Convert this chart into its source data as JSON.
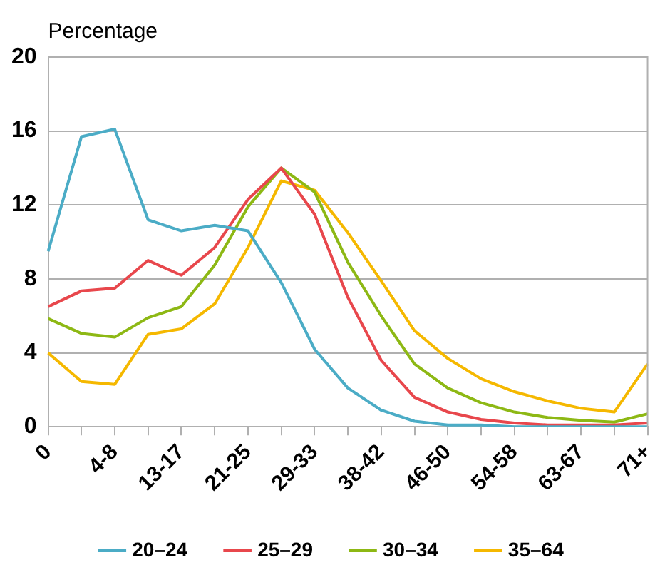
{
  "chart_data": {
    "type": "line",
    "ylabel": "Percentage",
    "categories": [
      "0",
      null,
      "4-8",
      null,
      "13-17",
      null,
      "21-25",
      null,
      "29-33",
      null,
      "38-42",
      null,
      "46-50",
      null,
      "54-58",
      null,
      "63-67",
      null,
      "71+"
    ],
    "ylim": [
      0,
      20
    ],
    "yticks": [
      0,
      4,
      8,
      12,
      16,
      20
    ],
    "grid": "y",
    "legend": "bottom",
    "marker": "none",
    "line_style": "solid",
    "series": [
      {
        "name": "20–24",
        "color": "#4bacc6",
        "values": [
          9.5,
          15.7,
          16.1,
          11.2,
          10.6,
          10.9,
          10.6,
          7.8,
          4.2,
          2.1,
          0.9,
          0.3,
          0.1,
          0.1,
          0,
          0,
          0,
          0,
          0
        ]
      },
      {
        "name": "25–29",
        "color": "#e8474c",
        "values": [
          6.5,
          7.35,
          7.5,
          9.0,
          8.2,
          9.7,
          12.3,
          14.0,
          11.5,
          7.0,
          3.6,
          1.6,
          0.8,
          0.4,
          0.2,
          0.1,
          0.1,
          0.1,
          0.2
        ]
      },
      {
        "name": "30–34",
        "color": "#8db814",
        "values": [
          5.85,
          5.05,
          4.85,
          5.9,
          6.5,
          8.75,
          11.9,
          14.0,
          12.7,
          8.9,
          6.0,
          3.4,
          2.1,
          1.3,
          0.8,
          0.5,
          0.35,
          0.25,
          0.7
        ]
      },
      {
        "name": "35–64",
        "color": "#f5b800",
        "values": [
          4.0,
          2.45,
          2.3,
          5.0,
          5.3,
          6.65,
          9.7,
          13.3,
          12.8,
          10.5,
          7.9,
          5.2,
          3.7,
          2.6,
          1.9,
          1.4,
          1.0,
          0.8,
          3.4
        ]
      }
    ]
  }
}
